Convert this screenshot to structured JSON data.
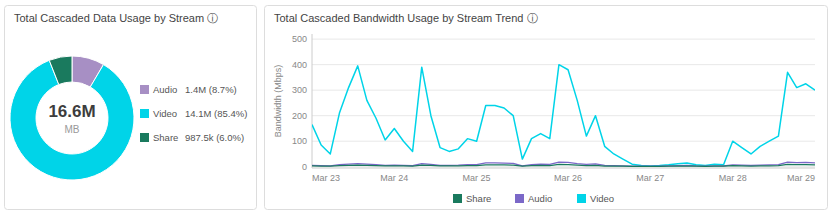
{
  "chart_data": [
    {
      "type": "donut",
      "title": "Total Cascaded Data Usage by Stream ⓘ",
      "categories": [
        "Audio",
        "Video",
        "Share"
      ],
      "values": [
        1.4,
        14.13,
        0.9875
      ],
      "value_labels": [
        "1.4M (8.7%)",
        "14.1M (85.4%)",
        "987.5k (6.0%)"
      ],
      "colors": [
        "#a78fc4",
        "#00d4e8",
        "#1a7a5e"
      ],
      "annotations": [
        "16.6M",
        "MB"
      ],
      "legend": "right"
    },
    {
      "type": "line",
      "title": "Total Cascaded Bandwidth Usage by Stream Trend ⓘ",
      "y_label": "Bandwidth (Mbps)",
      "categories": [
        "Mar 23",
        null,
        null,
        null,
        null,
        null,
        null,
        null,
        null,
        "Mar 24",
        null,
        null,
        null,
        null,
        null,
        null,
        null,
        null,
        "Mar 25",
        null,
        null,
        null,
        null,
        null,
        null,
        null,
        null,
        null,
        "Mar 26",
        null,
        null,
        null,
        null,
        null,
        null,
        null,
        null,
        "Mar 27",
        null,
        null,
        null,
        null,
        null,
        null,
        null,
        null,
        "Mar 28",
        null,
        null,
        null,
        null,
        null,
        null,
        null,
        null,
        "Mar 29"
      ],
      "series": [
        {
          "name": "Video",
          "color": "#00d4e8",
          "values": [
            165,
            85,
            50,
            210,
            310,
            395,
            260,
            190,
            105,
            150,
            100,
            60,
            390,
            200,
            75,
            60,
            70,
            110,
            100,
            240,
            240,
            230,
            200,
            30,
            110,
            130,
            110,
            400,
            380,
            260,
            120,
            200,
            80,
            50,
            30,
            10,
            5,
            3,
            5,
            8,
            12,
            15,
            8,
            5,
            10,
            8,
            100,
            75,
            50,
            80,
            100,
            120,
            370,
            310,
            325,
            300
          ]
        },
        {
          "name": "Audio",
          "color": "#7b68c8",
          "values": [
            5,
            4,
            3,
            8,
            10,
            12,
            10,
            8,
            5,
            6,
            5,
            4,
            12,
            9,
            5,
            5,
            6,
            8,
            8,
            15,
            15,
            14,
            13,
            3,
            8,
            10,
            9,
            18,
            17,
            12,
            9,
            11,
            5,
            4,
            3,
            2,
            2,
            2,
            2,
            3,
            4,
            5,
            3,
            2,
            3,
            3,
            7,
            6,
            5,
            6,
            7,
            8,
            18,
            16,
            17,
            15
          ]
        },
        {
          "name": "Share",
          "color": "#1a7a5e",
          "values": [
            3,
            2,
            2,
            4,
            5,
            6,
            5,
            4,
            3,
            3,
            3,
            2,
            6,
            5,
            3,
            3,
            3,
            4,
            4,
            7,
            7,
            7,
            6,
            2,
            4,
            5,
            4,
            9,
            8,
            6,
            4,
            5,
            2,
            2,
            2,
            1,
            1,
            1,
            1,
            2,
            2,
            2,
            2,
            1,
            2,
            2,
            4,
            3,
            2,
            3,
            3,
            4,
            9,
            8,
            8,
            7
          ]
        }
      ],
      "ylim": [
        -5,
        520
      ],
      "yticks": [
        0,
        100,
        200,
        300,
        400,
        500
      ],
      "grid": true,
      "legend": "bottom"
    }
  ]
}
